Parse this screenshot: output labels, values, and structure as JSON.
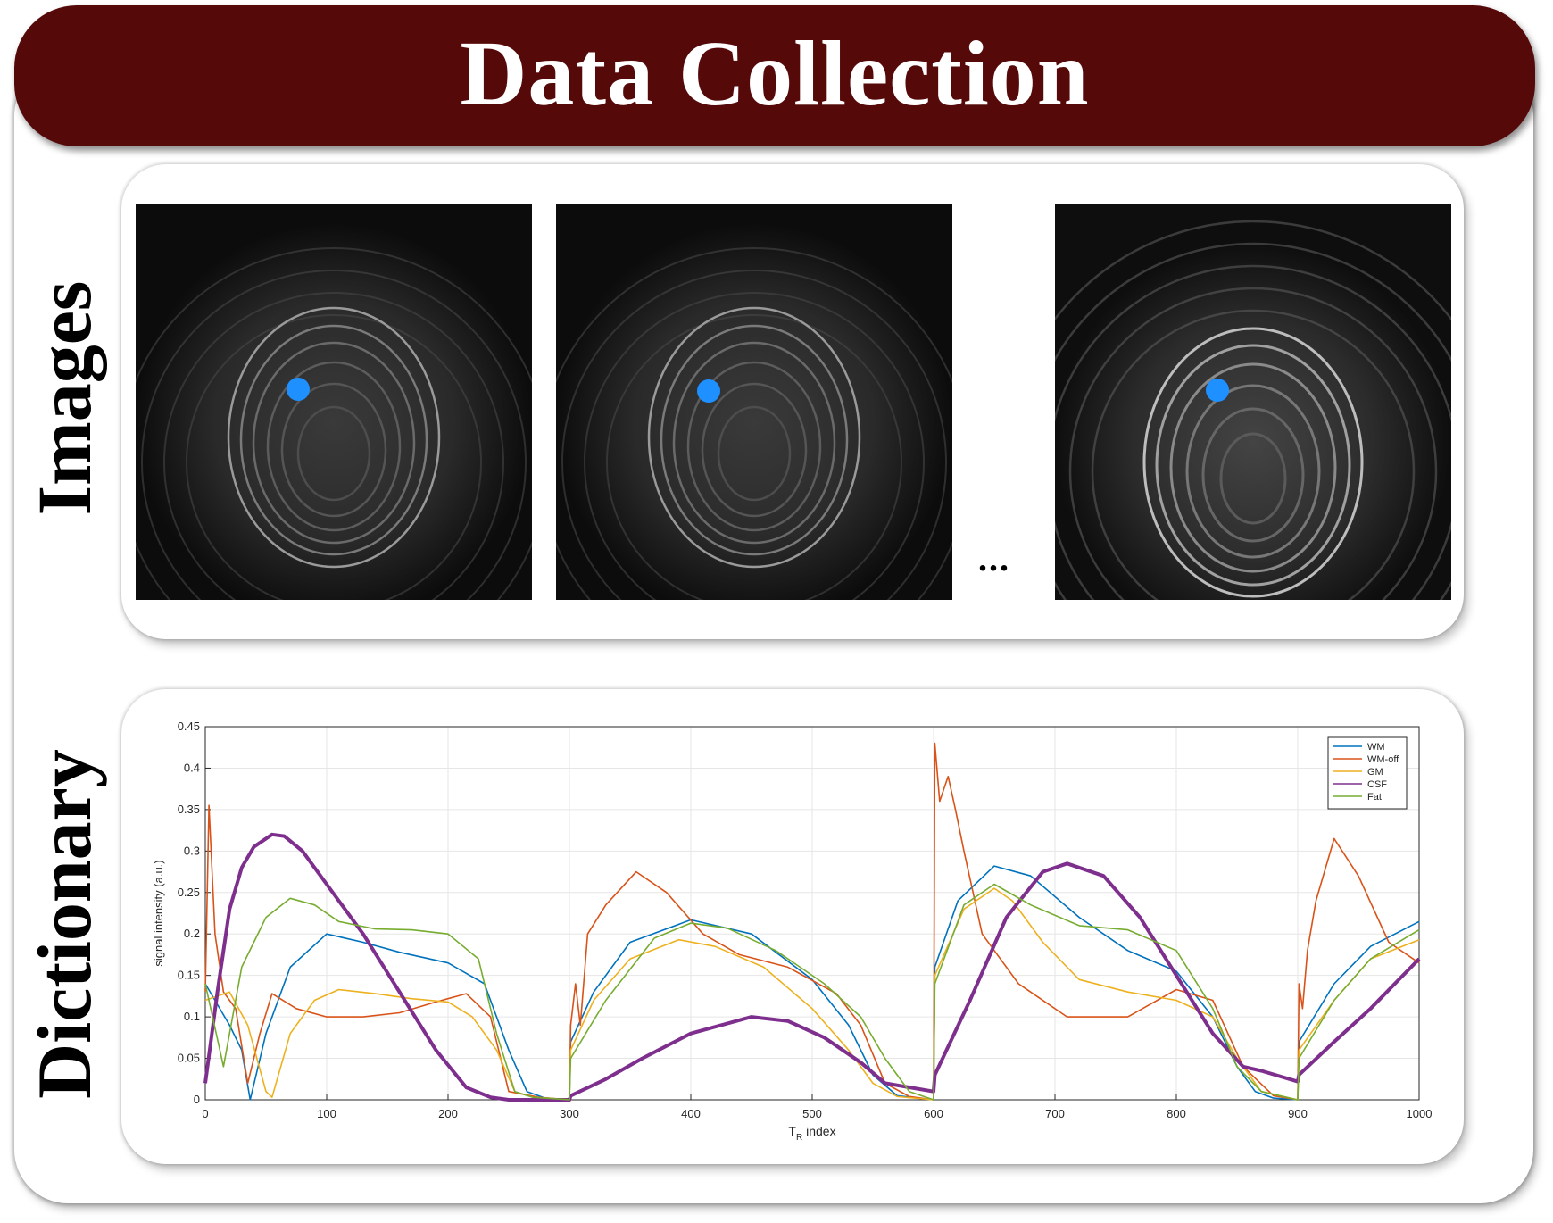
{
  "title": "Data Collection",
  "sections": {
    "images_label": "Images",
    "dictionary_label": "Dictionary",
    "ellipsis": "..."
  },
  "colors": {
    "banner": "#560909",
    "marker": "#1e90ff"
  },
  "chart_data": {
    "type": "line",
    "xlabel": "T_R index",
    "ylabel": "signal intensity (a.u.)",
    "xlim": [
      0,
      1000
    ],
    "ylim": [
      0,
      0.45
    ],
    "xticks": [
      0,
      100,
      200,
      300,
      400,
      500,
      600,
      700,
      800,
      900,
      1000
    ],
    "yticks": [
      0,
      0.05,
      0.1,
      0.15,
      0.2,
      0.25,
      0.3,
      0.35,
      0.4,
      0.45
    ],
    "grid": true,
    "legend_position": "top-right",
    "series": [
      {
        "name": "WM",
        "color": "#0072bd",
        "x": [
          0,
          20,
          30,
          37,
          50,
          70,
          100,
          130,
          160,
          200,
          230,
          250,
          265,
          280,
          300,
          301,
          320,
          350,
          400,
          450,
          500,
          530,
          550,
          570,
          600,
          601,
          620,
          650,
          680,
          720,
          760,
          800,
          830,
          850,
          865,
          880,
          900,
          901,
          930,
          960,
          1000
        ],
        "y": [
          0.14,
          0.09,
          0.06,
          0.0,
          0.08,
          0.16,
          0.2,
          0.19,
          0.178,
          0.165,
          0.14,
          0.06,
          0.01,
          0.002,
          0.0,
          0.07,
          0.13,
          0.19,
          0.217,
          0.2,
          0.145,
          0.09,
          0.03,
          0.005,
          0.0,
          0.16,
          0.24,
          0.282,
          0.27,
          0.22,
          0.18,
          0.155,
          0.1,
          0.04,
          0.01,
          0.002,
          0.0,
          0.07,
          0.14,
          0.185,
          0.215
        ]
      },
      {
        "name": "WM-off",
        "color": "#d95319",
        "x": [
          0,
          3,
          8,
          15,
          25,
          35,
          45,
          55,
          75,
          100,
          130,
          160,
          190,
          215,
          235,
          250,
          275,
          300,
          301,
          305,
          309,
          315,
          330,
          355,
          380,
          410,
          440,
          480,
          520,
          540,
          560,
          580,
          600,
          601,
          605,
          612,
          618,
          625,
          640,
          670,
          710,
          760,
          800,
          830,
          855,
          880,
          900,
          901,
          904,
          908,
          915,
          930,
          950,
          975,
          1000
        ],
        "y": [
          0.13,
          0.355,
          0.2,
          0.13,
          0.11,
          0.02,
          0.08,
          0.128,
          0.11,
          0.1,
          0.1,
          0.105,
          0.118,
          0.128,
          0.1,
          0.01,
          0.003,
          0.0,
          0.09,
          0.14,
          0.09,
          0.2,
          0.235,
          0.275,
          0.25,
          0.2,
          0.175,
          0.16,
          0.128,
          0.09,
          0.02,
          0.004,
          0.0,
          0.43,
          0.36,
          0.39,
          0.35,
          0.3,
          0.2,
          0.14,
          0.1,
          0.1,
          0.133,
          0.12,
          0.04,
          0.005,
          0.0,
          0.14,
          0.11,
          0.18,
          0.24,
          0.315,
          0.27,
          0.19,
          0.165
        ]
      },
      {
        "name": "GM",
        "color": "#edb120",
        "x": [
          0,
          20,
          35,
          50,
          55,
          70,
          90,
          110,
          140,
          170,
          200,
          220,
          240,
          255,
          270,
          300,
          301,
          320,
          350,
          390,
          420,
          460,
          500,
          530,
          550,
          570,
          600,
          601,
          625,
          650,
          665,
          690,
          720,
          760,
          800,
          830,
          850,
          870,
          900,
          901,
          930,
          960,
          1000
        ],
        "y": [
          0.12,
          0.13,
          0.09,
          0.01,
          0.003,
          0.08,
          0.12,
          0.133,
          0.128,
          0.122,
          0.118,
          0.1,
          0.06,
          0.01,
          0.003,
          0.0,
          0.06,
          0.12,
          0.17,
          0.193,
          0.185,
          0.16,
          0.11,
          0.06,
          0.02,
          0.004,
          0.0,
          0.15,
          0.23,
          0.255,
          0.24,
          0.19,
          0.145,
          0.13,
          0.12,
          0.1,
          0.05,
          0.01,
          0.0,
          0.06,
          0.12,
          0.17,
          0.193
        ]
      },
      {
        "name": "CSF",
        "color": "#7e2f8e",
        "x": [
          0,
          10,
          20,
          30,
          40,
          55,
          65,
          80,
          100,
          130,
          160,
          190,
          215,
          235,
          250,
          300,
          301,
          330,
          360,
          400,
          450,
          480,
          510,
          540,
          560,
          600,
          601,
          630,
          660,
          690,
          710,
          740,
          770,
          800,
          830,
          855,
          870,
          900,
          901,
          930,
          960,
          1000
        ],
        "y": [
          0.02,
          0.13,
          0.23,
          0.28,
          0.305,
          0.32,
          0.318,
          0.3,
          0.26,
          0.2,
          0.13,
          0.06,
          0.015,
          0.003,
          0.0,
          0.0,
          0.005,
          0.025,
          0.05,
          0.08,
          0.1,
          0.095,
          0.075,
          0.045,
          0.02,
          0.01,
          0.03,
          0.12,
          0.22,
          0.275,
          0.285,
          0.27,
          0.22,
          0.15,
          0.08,
          0.04,
          0.035,
          0.022,
          0.03,
          0.07,
          0.11,
          0.17
        ]
      },
      {
        "name": "Fat",
        "color": "#77ac30",
        "x": [
          0,
          15,
          30,
          50,
          70,
          90,
          110,
          140,
          170,
          200,
          225,
          240,
          255,
          270,
          300,
          301,
          330,
          370,
          400,
          430,
          470,
          510,
          540,
          560,
          580,
          600,
          601,
          625,
          650,
          680,
          720,
          760,
          800,
          830,
          850,
          870,
          900,
          901,
          930,
          960,
          1000
        ],
        "y": [
          0.14,
          0.04,
          0.16,
          0.22,
          0.243,
          0.235,
          0.215,
          0.206,
          0.205,
          0.2,
          0.17,
          0.08,
          0.01,
          0.003,
          0.0,
          0.05,
          0.12,
          0.195,
          0.213,
          0.207,
          0.18,
          0.14,
          0.1,
          0.05,
          0.01,
          0.0,
          0.14,
          0.235,
          0.26,
          0.235,
          0.21,
          0.205,
          0.18,
          0.11,
          0.04,
          0.01,
          0.0,
          0.05,
          0.12,
          0.17,
          0.205
        ]
      }
    ]
  }
}
